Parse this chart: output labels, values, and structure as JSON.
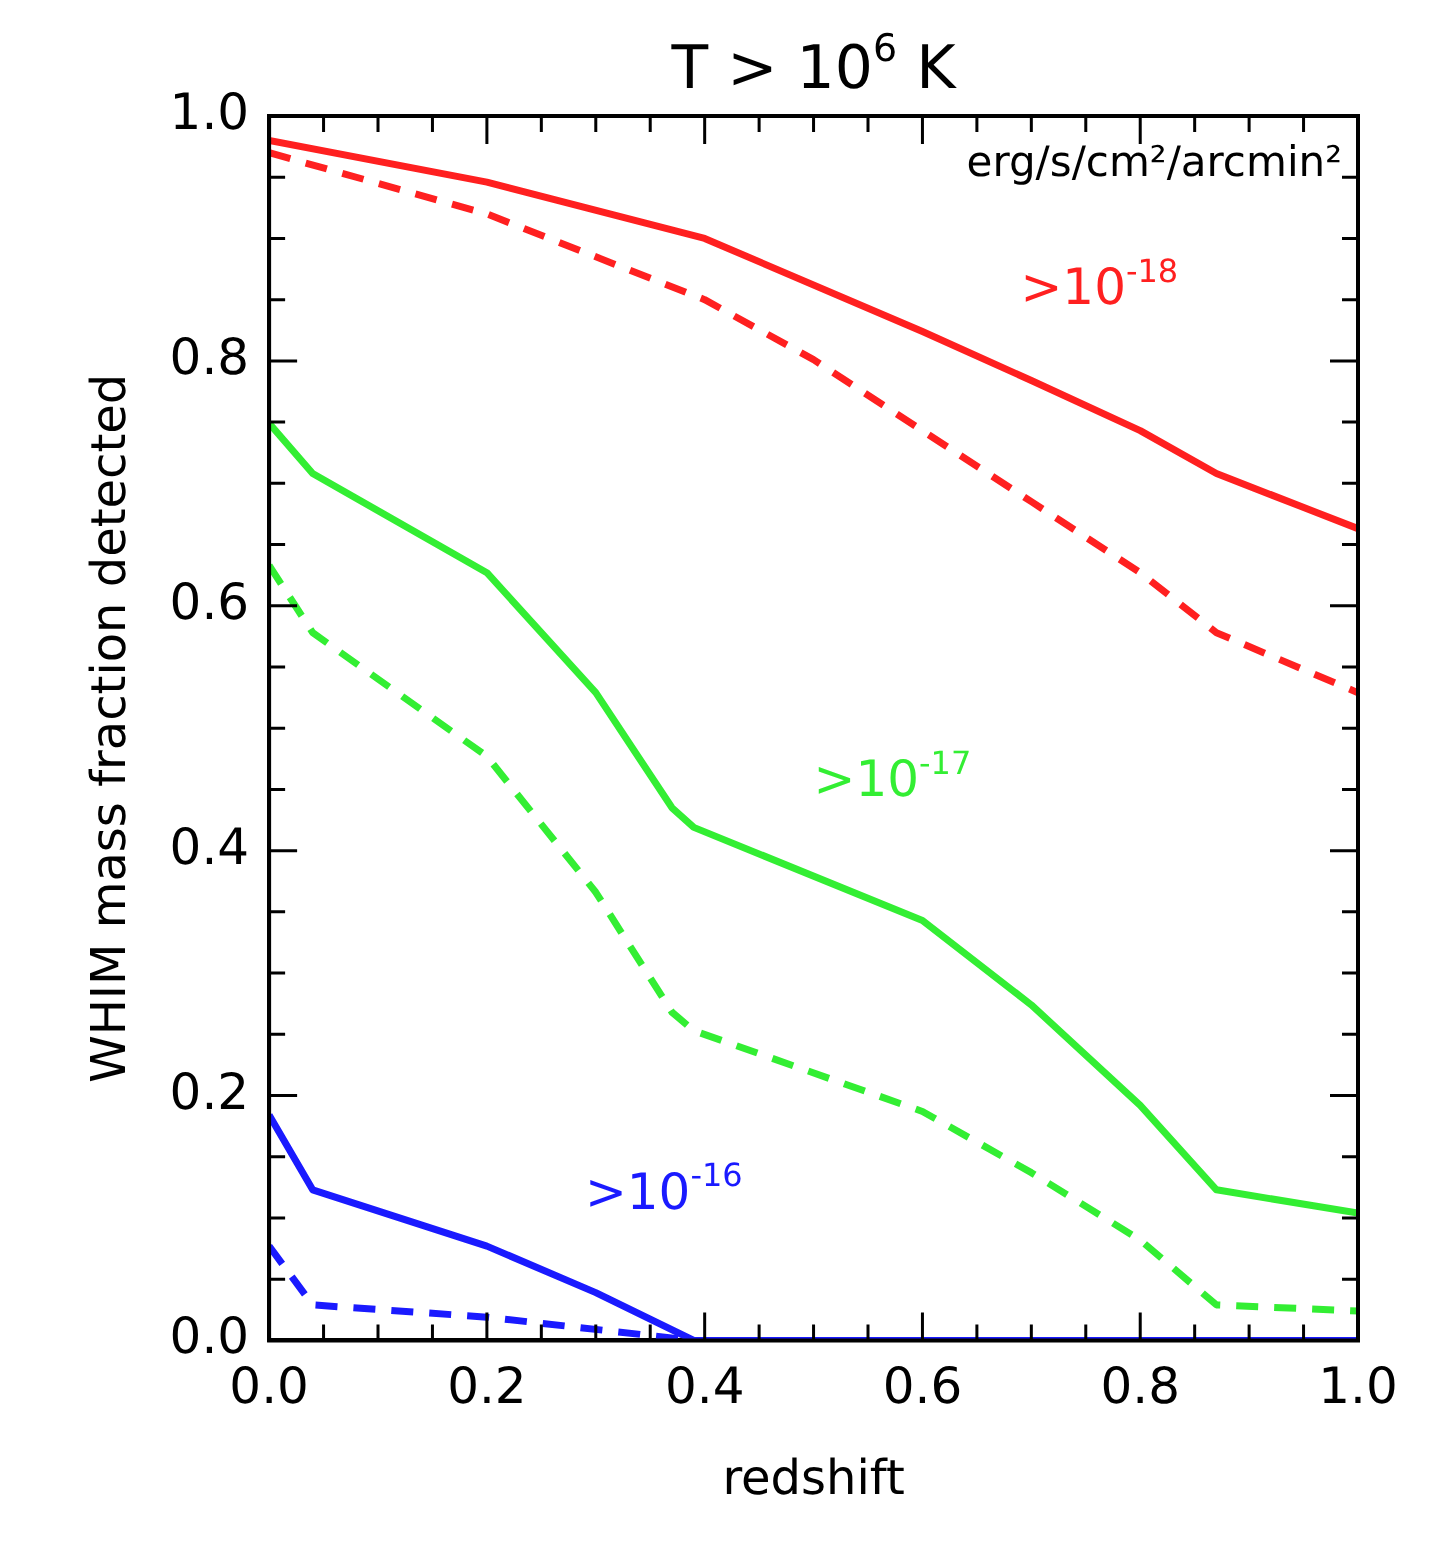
{
  "chart_data": {
    "type": "line",
    "title": "T > 10$^{6}$ K",
    "xlabel": "redshift",
    "ylabel": "WHIM mass fraction detected",
    "series": [
      {
        "name": ">10$^{-18}$",
        "color": "#ff2020",
        "line_style": "solid",
        "x": [
          0,
          0.2,
          0.4,
          0.6,
          0.7,
          0.8,
          0.87,
          1.0
        ],
        "values": [
          0.98,
          0.946,
          0.9,
          0.824,
          0.784,
          0.743,
          0.708,
          0.663
        ]
      },
      {
        "color": "#ff2020",
        "line_style": "dashed",
        "x": [
          0,
          0.2,
          0.4,
          0.5,
          0.6,
          0.7,
          0.8,
          0.87,
          1.0
        ],
        "values": [
          0.97,
          0.92,
          0.85,
          0.801,
          0.743,
          0.685,
          0.627,
          0.578,
          0.529
        ]
      },
      {
        "name": ">10$^{-17}$",
        "color": "#33ee33",
        "line_style": "solid",
        "x": [
          0,
          0.04,
          0.2,
          0.3,
          0.37,
          0.39,
          0.6,
          0.7,
          0.8,
          0.87,
          1.0
        ],
        "values": [
          0.749,
          0.708,
          0.627,
          0.529,
          0.435,
          0.419,
          0.343,
          0.274,
          0.192,
          0.123,
          0.104
        ]
      },
      {
        "color": "#33ee33",
        "line_style": "dashed",
        "x": [
          0,
          0.04,
          0.2,
          0.3,
          0.37,
          0.39,
          0.6,
          0.7,
          0.8,
          0.87,
          1.0
        ],
        "values": [
          0.633,
          0.578,
          0.477,
          0.366,
          0.268,
          0.253,
          0.187,
          0.137,
          0.082,
          0.029,
          0.024
        ]
      },
      {
        "name": ">10$^{-16}$",
        "color": "#1a1aff",
        "line_style": "solid",
        "x": [
          0,
          0.04,
          0.2,
          0.3,
          0.39,
          1.0
        ],
        "values": [
          0.184,
          0.123,
          0.077,
          0.039,
          0,
          0
        ]
      },
      {
        "color": "#1a1aff",
        "line_style": "dashed",
        "x": [
          0,
          0.04,
          0.2,
          0.39,
          1.0
        ],
        "values": [
          0.077,
          0.029,
          0.019,
          0,
          0
        ]
      }
    ],
    "xlim": [
      0,
      1
    ],
    "ylim": [
      0,
      1
    ],
    "xticks": [
      {
        "value": 0,
        "label": "0.0"
      },
      {
        "value": 0.05,
        "label": null
      },
      {
        "value": 0.1,
        "label": null
      },
      {
        "value": 0.15,
        "label": null
      },
      {
        "value": 0.2,
        "label": "0.2"
      },
      {
        "value": 0.25,
        "label": null
      },
      {
        "value": 0.3,
        "label": null
      },
      {
        "value": 0.35,
        "label": null
      },
      {
        "value": 0.4,
        "label": "0.4"
      },
      {
        "value": 0.45,
        "label": null
      },
      {
        "value": 0.5,
        "label": null
      },
      {
        "value": 0.55,
        "label": null
      },
      {
        "value": 0.6,
        "label": "0.6"
      },
      {
        "value": 0.65,
        "label": null
      },
      {
        "value": 0.7,
        "label": null
      },
      {
        "value": 0.75,
        "label": null
      },
      {
        "value": 0.8,
        "label": "0.8"
      },
      {
        "value": 0.85,
        "label": null
      },
      {
        "value": 0.9,
        "label": null
      },
      {
        "value": 0.95,
        "label": null
      },
      {
        "value": 1,
        "label": "1.0"
      }
    ],
    "yticks": [
      {
        "value": 0,
        "label": "0.0"
      },
      {
        "value": 0.05,
        "label": null
      },
      {
        "value": 0.1,
        "label": null
      },
      {
        "value": 0.15,
        "label": null
      },
      {
        "value": 0.2,
        "label": "0.2"
      },
      {
        "value": 0.25,
        "label": null
      },
      {
        "value": 0.3,
        "label": null
      },
      {
        "value": 0.35,
        "label": null
      },
      {
        "value": 0.4,
        "label": "0.4"
      },
      {
        "value": 0.45,
        "label": null
      },
      {
        "value": 0.5,
        "label": null
      },
      {
        "value": 0.55,
        "label": null
      },
      {
        "value": 0.6,
        "label": "0.6"
      },
      {
        "value": 0.65,
        "label": null
      },
      {
        "value": 0.7,
        "label": null
      },
      {
        "value": 0.75,
        "label": null
      },
      {
        "value": 0.8,
        "label": "0.8"
      },
      {
        "value": 0.85,
        "label": null
      },
      {
        "value": 0.9,
        "label": null
      },
      {
        "value": 0.95,
        "label": null
      },
      {
        "value": 1,
        "label": "1.0"
      }
    ],
    "grid": false,
    "legend": false,
    "marker": "none",
    "annotations": [
      "erg/s/cm²/arcmin²"
    ]
  }
}
